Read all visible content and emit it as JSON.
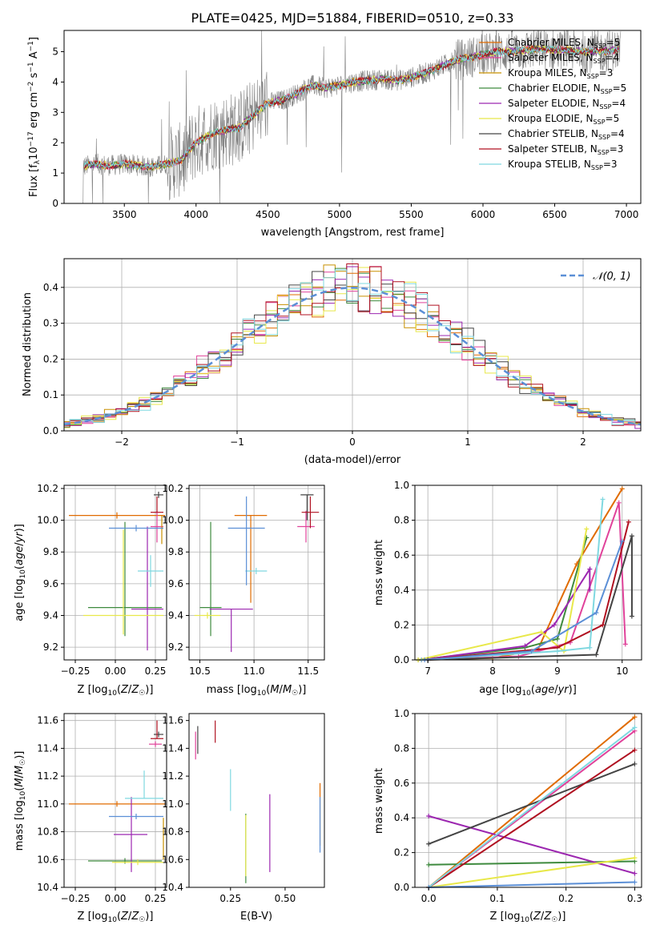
{
  "figure_title": "PLATE=0425, MJD=51884, FIBERID=0510, z=0.33",
  "colors": {
    "series": [
      "#e06b00",
      "#e0429a",
      "#c89000",
      "#3e8a3e",
      "#9c27b0",
      "#e8e84a",
      "#444444",
      "#b01020",
      "#7fd8e0"
    ],
    "chabrier_miles": "#e06b00",
    "salpeter_miles": "#e0429a",
    "kroupa_miles": "#c89000",
    "chabrier_elodie": "#3e8a3e",
    "salpeter_elodie": "#9c27b0",
    "kroupa_elodie": "#e8e84a",
    "chabrier_stelib": "#444444",
    "salpeter_stelib": "#b01020",
    "kroupa_stelib": "#7fd8e0",
    "observed": "#808080",
    "normal": "#5b8fd6",
    "grid": "#b0b0b0"
  },
  "legend_spectrum": [
    {
      "name": "Chabrier MILES, N",
      "sub": "SSP",
      "tail": "=5"
    },
    {
      "name": "Salpeter MILES, N",
      "sub": "SSP",
      "tail": "=4"
    },
    {
      "name": "Kroupa MILES, N",
      "sub": "SSP",
      "tail": "=3"
    },
    {
      "name": "Chabrier ELODIE, N",
      "sub": "SSP",
      "tail": "=5"
    },
    {
      "name": "Salpeter ELODIE, N",
      "sub": "SSP",
      "tail": "=4"
    },
    {
      "name": "Kroupa ELODIE, N",
      "sub": "SSP",
      "tail": "=5"
    },
    {
      "name": "Chabrier STELIB, N",
      "sub": "SSP",
      "tail": "=4"
    },
    {
      "name": "Salpeter STELIB, N",
      "sub": "SSP",
      "tail": "=3"
    },
    {
      "name": "Kroupa STELIB, N",
      "sub": "SSP",
      "tail": "=3"
    }
  ],
  "legend_normal": "𝒩(0, 1)",
  "chart_data": [
    {
      "id": "spectrum",
      "type": "line",
      "xlabel": "wavelength [Angstrom, rest frame]",
      "ylabel": "Flux [f_λ 10^-17 erg cm^-2 s^-1 A^-1]",
      "xlim": [
        3080,
        7100
      ],
      "ylim": [
        0,
        5.7
      ],
      "xticks": [
        "3500",
        "4000",
        "4500",
        "5000",
        "5500",
        "6000",
        "6500",
        "7000"
      ],
      "yticks": [
        "0",
        "1",
        "2",
        "3",
        "4",
        "5"
      ],
      "grid": false,
      "legend_position": "right",
      "model_nodes": {
        "x": [
          3200,
          3300,
          3400,
          3500,
          3600,
          3700,
          3800,
          3900,
          4000,
          4100,
          4200,
          4300,
          4400,
          4500,
          4600,
          4700,
          4800,
          4900,
          5000,
          5100,
          5200,
          5300,
          5400,
          5500,
          5600,
          5700,
          5800,
          5900,
          6000,
          6100,
          6200,
          6300,
          6400,
          6500,
          6600,
          6700,
          6800,
          6900
        ],
        "y": [
          1.2,
          1.3,
          1.25,
          1.3,
          1.25,
          1.2,
          1.3,
          1.45,
          2.0,
          2.3,
          2.4,
          2.5,
          2.9,
          3.3,
          3.4,
          3.6,
          3.9,
          3.8,
          3.9,
          4.0,
          4.05,
          4.1,
          4.05,
          4.15,
          4.3,
          4.5,
          4.7,
          4.8,
          4.9,
          5.0,
          5.0,
          5.05,
          5.1,
          5.05,
          5.05,
          5.0,
          5.0,
          5.05
        ]
      }
    },
    {
      "id": "residuals",
      "type": "area",
      "xlabel": "(data-model)/error",
      "ylabel": "Normed distribution",
      "xlim": [
        -2.5,
        2.5
      ],
      "ylim": [
        0,
        0.48
      ],
      "xticks": [
        "−2",
        "−1",
        "0",
        "1",
        "2"
      ],
      "yticks": [
        "0.0",
        "0.1",
        "0.2",
        "0.3",
        "0.4"
      ],
      "grid": true,
      "legend_position": "top-right",
      "bin_width": 0.1,
      "curve": "normal pdf, mean 0, sigma 1"
    },
    {
      "id": "age_vs_Z",
      "type": "scatter",
      "xlabel": "Z [log10(Z/Z☉)]",
      "ylabel": "age [log10(age/yr)]",
      "xlim": [
        -0.32,
        0.32
      ],
      "ylim": [
        9.12,
        10.22
      ],
      "xticks": [
        "−0.25",
        "0.00",
        "0.25"
      ],
      "yticks": [
        "9.2",
        "9.4",
        "9.6",
        "9.8",
        "10.0",
        "10.2"
      ],
      "grid": true,
      "points": [
        {
          "series": 0,
          "x": 0.01,
          "xerr": [
            0.3,
            0.3
          ],
          "y": 10.03,
          "yerr": [
            0.0,
            0.0
          ]
        },
        {
          "series": 1,
          "x": 0.26,
          "xerr": [
            0.04,
            0.04
          ],
          "y": 9.96,
          "yerr": [
            0.1,
            0.1
          ]
        },
        {
          "series": 2,
          "x": 0.29,
          "xerr": [
            0.01,
            0.01
          ],
          "y": 9.95,
          "yerr": [
            0.1,
            0.08
          ]
        },
        {
          "series": 3,
          "x": 0.06,
          "xerr": [
            0.23,
            0.23
          ],
          "y": 9.45,
          "yerr": [
            0.18,
            0.54
          ]
        },
        {
          "series": 4,
          "x": 0.2,
          "xerr": [
            0.1,
            0.1
          ],
          "y": 9.44,
          "yerr": [
            0.26,
            0.52
          ]
        },
        {
          "series": 5,
          "x": 0.05,
          "xerr": [
            0.25,
            0.25
          ],
          "y": 9.4,
          "yerr": [
            0.12,
            0.54
          ]
        },
        {
          "series": 6,
          "x": 0.27,
          "xerr": [
            0.03,
            0.03
          ],
          "y": 10.16,
          "yerr": [
            0.0,
            0.0
          ]
        },
        {
          "series": 7,
          "x": 0.26,
          "xerr": [
            0.04,
            0.04
          ],
          "y": 10.05,
          "yerr": [
            0.0,
            0.1
          ]
        },
        {
          "series": 8,
          "x": 0.22,
          "xerr": [
            0.08,
            0.08
          ],
          "y": 9.68,
          "yerr": [
            0.1,
            0.1
          ]
        },
        {
          "series": 9,
          "x": 0.13,
          "xerr": [
            0.17,
            0.17
          ],
          "y": 9.95,
          "yerr": [
            0.0,
            0.0
          ]
        }
      ]
    },
    {
      "id": "age_vs_mass",
      "type": "scatter",
      "xlabel": "mass [log10(M/M☉)]",
      "ylabel": "",
      "xlim": [
        10.4,
        11.65
      ],
      "ylim": [
        9.12,
        10.22
      ],
      "xticks": [
        "10.5",
        "11.0",
        "11.5"
      ],
      "yticks": [
        "9.2",
        "9.4",
        "9.6",
        "9.8",
        "10.0",
        "10.2"
      ],
      "grid": true,
      "points": [
        {
          "series": 0,
          "x": 10.97,
          "xerr": [
            0.15,
            0.15
          ],
          "y": 10.03,
          "yerr": [
            0.55,
            0.0
          ]
        },
        {
          "series": 1,
          "x": 11.48,
          "xerr": [
            0.08,
            0.08
          ],
          "y": 9.96,
          "yerr": [
            0.1,
            0.1
          ]
        },
        {
          "series": 3,
          "x": 10.6,
          "xerr": [
            0.1,
            0.1
          ],
          "y": 9.45,
          "yerr": [
            0.18,
            0.54
          ]
        },
        {
          "series": 4,
          "x": 10.79,
          "xerr": [
            0.2,
            0.2
          ],
          "y": 9.44,
          "yerr": [
            0.27,
            0.0
          ]
        },
        {
          "series": 5,
          "x": 10.57,
          "xerr": [
            0.12,
            0.12
          ],
          "y": 9.4,
          "yerr": [
            0.0,
            0.0
          ]
        },
        {
          "series": 6,
          "x": 11.49,
          "xerr": [
            0.06,
            0.06
          ],
          "y": 10.16,
          "yerr": [
            0.16,
            0.0
          ]
        },
        {
          "series": 7,
          "x": 11.52,
          "xerr": [
            0.08,
            0.08
          ],
          "y": 10.05,
          "yerr": [
            0.1,
            0.1
          ]
        },
        {
          "series": 8,
          "x": 11.02,
          "xerr": [
            0.1,
            0.1
          ],
          "y": 9.68,
          "yerr": [
            0.0,
            0.0
          ]
        },
        {
          "series": 9,
          "x": 10.93,
          "xerr": [
            0.17,
            0.17
          ],
          "y": 9.95,
          "yerr": [
            0.36,
            0.2
          ]
        }
      ]
    },
    {
      "id": "mass_weight_vs_age",
      "type": "line",
      "xlabel": "age [log10(age/yr)]",
      "ylabel": "mass weight",
      "xlim": [
        6.8,
        10.3
      ],
      "ylim": [
        0,
        1.0
      ],
      "xticks": [
        "7",
        "8",
        "9",
        "10"
      ],
      "yticks": [
        "0.0",
        "0.2",
        "0.4",
        "0.6",
        "0.8",
        "1.0"
      ],
      "grid": true,
      "series": [
        {
          "color_index": 0,
          "x": [
            6.85,
            8.0,
            8.7,
            9.3,
            10.0
          ],
          "y": [
            0.0,
            0.01,
            0.06,
            0.55,
            0.98
          ]
        },
        {
          "color_index": 1,
          "x": [
            6.9,
            8.4,
            9.2,
            9.95,
            10.05
          ],
          "y": [
            0.0,
            0.02,
            0.1,
            0.9,
            0.09
          ]
        },
        {
          "color_index": 3,
          "x": [
            6.85,
            8.5,
            9.0,
            9.45
          ],
          "y": [
            0.0,
            0.07,
            0.12,
            0.7
          ]
        },
        {
          "color_index": 4,
          "x": [
            6.9,
            8.5,
            8.95,
            9.5,
            9.5
          ],
          "y": [
            0.0,
            0.08,
            0.2,
            0.52,
            0.4
          ]
        },
        {
          "color_index": 5,
          "x": [
            6.85,
            8.75,
            9.1,
            9.45
          ],
          "y": [
            0.0,
            0.16,
            0.05,
            0.75
          ]
        },
        {
          "color_index": 6,
          "x": [
            7.0,
            9.6,
            10.15,
            10.15
          ],
          "y": [
            0.0,
            0.03,
            0.71,
            0.25
          ]
        },
        {
          "color_index": 7,
          "x": [
            6.9,
            9.0,
            9.7,
            10.1
          ],
          "y": [
            0.0,
            0.07,
            0.2,
            0.79
          ]
        },
        {
          "color_index": 8,
          "x": [
            6.9,
            9.0,
            9.5,
            9.7
          ],
          "y": [
            0.0,
            0.05,
            0.07,
            0.92
          ]
        },
        {
          "color_index": 9,
          "x": [
            6.95,
            8.6,
            9.6,
            10.0
          ],
          "y": [
            0.0,
            0.05,
            0.27,
            0.68
          ]
        }
      ]
    },
    {
      "id": "mass_vs_Z",
      "type": "scatter",
      "xlabel": "Z [log10(Z/Z☉)]",
      "ylabel": "mass [log10(M/M☉)]",
      "xlim": [
        -0.32,
        0.32
      ],
      "ylim": [
        10.4,
        11.65
      ],
      "xticks": [
        "−0.25",
        "0.00",
        "0.25"
      ],
      "yticks": [
        "10.4",
        "10.6",
        "10.8",
        "11.0",
        "11.2",
        "11.4",
        "11.6"
      ],
      "grid": true,
      "points": [
        {
          "series": 0,
          "x": 0.01,
          "xerr": [
            0.3,
            0.3
          ],
          "y": 11.0,
          "yerr": [
            0.0,
            0.0
          ]
        },
        {
          "series": 1,
          "x": 0.25,
          "xerr": [
            0.04,
            0.04
          ],
          "y": 11.43,
          "yerr": [
            0.0,
            0.0
          ]
        },
        {
          "series": 2,
          "x": 0.3,
          "xerr": [
            0.0,
            0.0
          ],
          "y": 10.7,
          "yerr": [
            0.1,
            0.2
          ]
        },
        {
          "series": 3,
          "x": 0.06,
          "xerr": [
            0.23,
            0.23
          ],
          "y": 10.59,
          "yerr": [
            0.0,
            0.0
          ]
        },
        {
          "series": 4,
          "x": 0.1,
          "xerr": [
            0.11,
            0.1
          ],
          "y": 10.78,
          "yerr": [
            0.27,
            0.27
          ]
        },
        {
          "series": 5,
          "x": 0.14,
          "xerr": [
            0.16,
            0.16
          ],
          "y": 10.58,
          "yerr": [
            0.0,
            0.0
          ]
        },
        {
          "series": 6,
          "x": 0.27,
          "xerr": [
            0.03,
            0.03
          ],
          "y": 11.5,
          "yerr": [
            0.0,
            0.0
          ]
        },
        {
          "series": 7,
          "x": 0.26,
          "xerr": [
            0.04,
            0.04
          ],
          "y": 11.47,
          "yerr": [
            0.0,
            0.13
          ]
        },
        {
          "series": 8,
          "x": 0.18,
          "xerr": [
            0.12,
            0.12
          ],
          "y": 11.04,
          "yerr": [
            0.0,
            0.2
          ]
        },
        {
          "series": 9,
          "x": 0.13,
          "xerr": [
            0.17,
            0.17
          ],
          "y": 10.91,
          "yerr": [
            0.0,
            0.0
          ]
        }
      ]
    },
    {
      "id": "mass_vs_ebv",
      "type": "scatter",
      "xlabel": "E(B-V)",
      "ylabel": "",
      "xlim": [
        0.06,
        0.68
      ],
      "ylim": [
        10.4,
        11.65
      ],
      "xticks": [
        "0.25",
        "0.50"
      ],
      "yticks": [
        "10.4",
        "10.6",
        "10.8",
        "11.0",
        "11.2",
        "11.4",
        "11.6"
      ],
      "grid": false,
      "points": [
        {
          "series": 0,
          "x": 0.66,
          "xerr": [
            0,
            0
          ],
          "y": 10.95,
          "yerr": [
            0.25,
            0.2
          ]
        },
        {
          "series": 1,
          "x": 0.09,
          "xerr": [
            0,
            0
          ],
          "y": 11.42,
          "yerr": [
            0.1,
            0.1
          ]
        },
        {
          "series": 3,
          "x": 0.32,
          "xerr": [
            0,
            0
          ],
          "y": 10.63,
          "yerr": [
            0.2,
            0.3
          ]
        },
        {
          "series": 4,
          "x": 0.43,
          "xerr": [
            0,
            0
          ],
          "y": 10.79,
          "yerr": [
            0.28,
            0.28
          ]
        },
        {
          "series": 5,
          "x": 0.32,
          "xerr": [
            0,
            0
          ],
          "y": 10.7,
          "yerr": [
            0.22,
            0.22
          ]
        },
        {
          "series": 6,
          "x": 0.1,
          "xerr": [
            0,
            0
          ],
          "y": 11.46,
          "yerr": [
            0.1,
            0.1
          ]
        },
        {
          "series": 7,
          "x": 0.18,
          "xerr": [
            0,
            0
          ],
          "y": 11.52,
          "yerr": [
            0.08,
            0.08
          ]
        },
        {
          "series": 8,
          "x": 0.25,
          "xerr": [
            0,
            0
          ],
          "y": 11.1,
          "yerr": [
            0.15,
            0.15
          ]
        },
        {
          "series": 9,
          "x": 0.66,
          "xerr": [
            0,
            0
          ],
          "y": 10.85,
          "yerr": [
            0.2,
            0.2
          ]
        }
      ]
    },
    {
      "id": "mass_weight_vs_Z",
      "type": "line",
      "xlabel": "Z [log10(Z/Z☉)]",
      "ylabel": "mass weight",
      "xlim": [
        -0.02,
        0.31
      ],
      "ylim": [
        0,
        1.0
      ],
      "xticks": [
        "0.0",
        "0.1",
        "0.2",
        "0.3"
      ],
      "yticks": [
        "0.0",
        "0.2",
        "0.4",
        "0.6",
        "0.8",
        "1.0"
      ],
      "grid": true,
      "series": [
        {
          "color_index": 0,
          "x": [
            0.0,
            0.3
          ],
          "y": [
            0.0,
            0.98
          ]
        },
        {
          "color_index": 1,
          "x": [
            0.0,
            0.3
          ],
          "y": [
            0.0,
            0.9
          ]
        },
        {
          "color_index": 3,
          "x": [
            0.0,
            0.3
          ],
          "y": [
            0.13,
            0.15
          ]
        },
        {
          "color_index": 4,
          "x": [
            0.0,
            0.3
          ],
          "y": [
            0.41,
            0.08
          ]
        },
        {
          "color_index": 5,
          "x": [
            0.0,
            0.3
          ],
          "y": [
            0.0,
            0.17
          ]
        },
        {
          "color_index": 6,
          "x": [
            0.0,
            0.3
          ],
          "y": [
            0.25,
            0.71
          ]
        },
        {
          "color_index": 7,
          "x": [
            0.0,
            0.3
          ],
          "y": [
            0.0,
            0.79
          ]
        },
        {
          "color_index": 8,
          "x": [
            0.0,
            0.3
          ],
          "y": [
            0.0,
            0.92
          ]
        },
        {
          "color_index": 9,
          "x": [
            0.0,
            0.3
          ],
          "y": [
            0.0,
            0.03
          ]
        }
      ]
    }
  ]
}
